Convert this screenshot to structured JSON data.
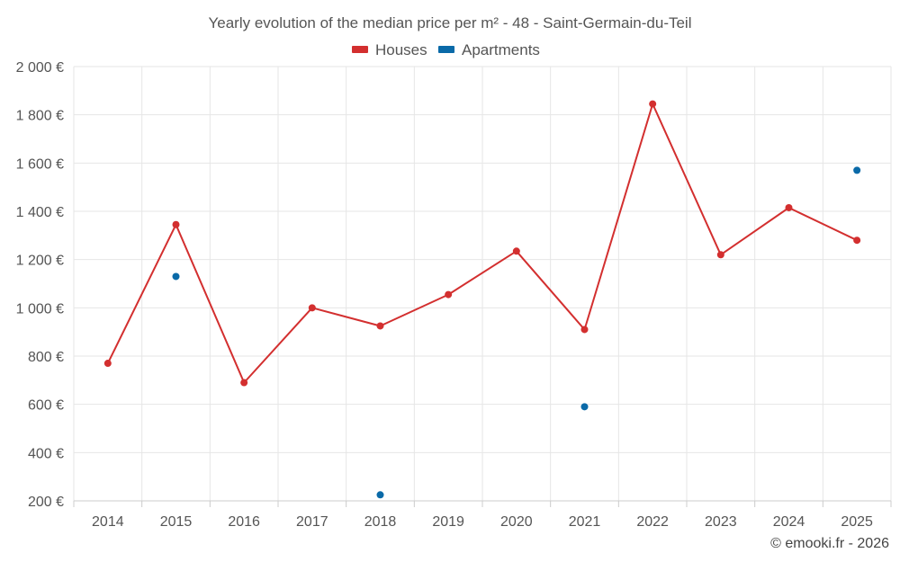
{
  "chart_data": {
    "type": "line",
    "title": "Yearly evolution of the median price per m² - 48 - Saint-Germain-du-Teil",
    "categories": [
      "2014",
      "2015",
      "2016",
      "2017",
      "2018",
      "2019",
      "2020",
      "2021",
      "2022",
      "2023",
      "2024",
      "2025"
    ],
    "ylim": [
      200,
      2000
    ],
    "yticks": [
      200,
      400,
      600,
      800,
      1000,
      1200,
      1400,
      1600,
      1800,
      2000
    ],
    "ytick_labels": [
      "200 €",
      "400 €",
      "600 €",
      "800 €",
      "1 000 €",
      "1 200 €",
      "1 400 €",
      "1 600 €",
      "1 800 €",
      "2 000 €"
    ],
    "grid": true,
    "legend_position": "top-center",
    "series": [
      {
        "name": "Houses",
        "color": "#d32f2f",
        "style": "line-with-markers",
        "values": [
          770,
          1345,
          690,
          1000,
          925,
          1055,
          1235,
          910,
          1845,
          1220,
          1415,
          1280
        ]
      },
      {
        "name": "Apartments",
        "color": "#0a6aa8",
        "style": "markers",
        "values": [
          null,
          1130,
          null,
          null,
          225,
          null,
          null,
          590,
          null,
          null,
          null,
          1570
        ]
      }
    ]
  },
  "credit": "© emooki.fr - 2026"
}
